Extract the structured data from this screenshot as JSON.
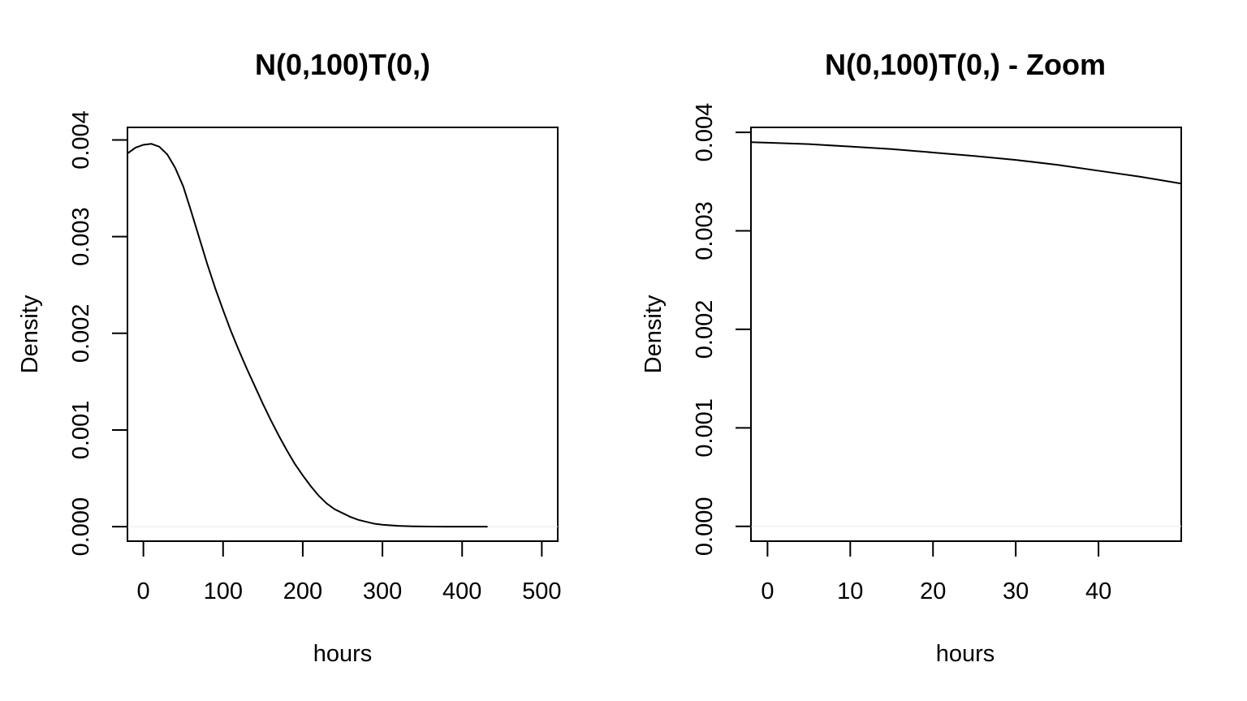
{
  "chart_data": [
    {
      "type": "line",
      "title": "N(0,100)T(0,)",
      "xlabel": "hours",
      "ylabel": "Density",
      "xlim": [
        -20,
        520
      ],
      "ylim": [
        -0.00015,
        0.00413
      ],
      "xticks": [
        0,
        100,
        200,
        300,
        400,
        500
      ],
      "xtick_labels": [
        "0",
        "100",
        "200",
        "300",
        "400",
        "500"
      ],
      "yticks": [
        0,
        0.001,
        0.002,
        0.003,
        0.004
      ],
      "ytick_labels": [
        "0.000",
        "0.001",
        "0.002",
        "0.003",
        "0.004"
      ],
      "zero_line": true,
      "series": [
        {
          "x": [
            -20,
            -10,
            0,
            10,
            20,
            30,
            40,
            50,
            60,
            70,
            80,
            90,
            100,
            110,
            120,
            130,
            140,
            150,
            160,
            170,
            180,
            190,
            200,
            210,
            220,
            230,
            240,
            250,
            260,
            270,
            280,
            290,
            300,
            320,
            340,
            360,
            380,
            400,
            432
          ],
          "y": [
            0.00386,
            0.00392,
            0.00395,
            0.00396,
            0.00393,
            0.00385,
            0.00371,
            0.00352,
            0.00326,
            0.00299,
            0.00272,
            0.00247,
            0.00224,
            0.00202,
            0.00182,
            0.00163,
            0.00145,
            0.00127,
            0.0011,
            0.00094,
            0.00079,
            0.00065,
            0.00053,
            0.00042,
            0.00032,
            0.00024,
            0.00018,
            0.00014,
            0.0001,
            7e-05,
            5e-05,
            3e-05,
            2e-05,
            8e-06,
            3e-06,
            1e-06,
            5e-07,
            2e-07,
            0.0
          ]
        }
      ]
    },
    {
      "type": "line",
      "title": "N(0,100)T(0,) - Zoom",
      "xlabel": "hours",
      "ylabel": "Density",
      "xlim": [
        -2,
        50
      ],
      "ylim": [
        -0.00015,
        0.00405
      ],
      "xticks": [
        0,
        10,
        20,
        30,
        40
      ],
      "xtick_labels": [
        "0",
        "10",
        "20",
        "30",
        "40"
      ],
      "yticks": [
        0,
        0.001,
        0.002,
        0.003,
        0.004
      ],
      "ytick_labels": [
        "0.000",
        "0.001",
        "0.002",
        "0.003",
        "0.004"
      ],
      "zero_line": true,
      "series": [
        {
          "x": [
            -2,
            0,
            5,
            10,
            15,
            20,
            25,
            30,
            35,
            40,
            45,
            50
          ],
          "y": [
            0.0039,
            0.003895,
            0.00388,
            0.003855,
            0.00383,
            0.003795,
            0.00376,
            0.00372,
            0.00367,
            0.00361,
            0.00355,
            0.00348
          ]
        }
      ]
    }
  ]
}
